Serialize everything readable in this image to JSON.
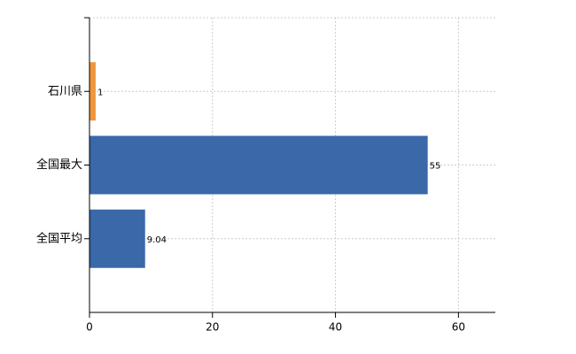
{
  "chart_data": {
    "type": "bar",
    "orientation": "horizontal",
    "categories": [
      "石川県",
      "全国最大",
      "全国平均"
    ],
    "values": [
      1,
      55,
      9.04
    ],
    "colors": [
      "#f0963c",
      "#3a68a8",
      "#3a68a8"
    ],
    "xlim": [
      0,
      66
    ],
    "xticks": [
      0,
      20,
      40,
      60
    ],
    "grid": true
  }
}
